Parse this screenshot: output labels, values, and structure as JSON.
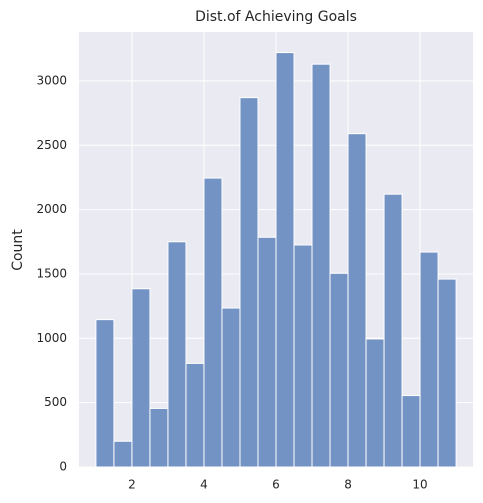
{
  "chart_data": {
    "type": "histogram",
    "title": "Dist.of Achieving Goals",
    "y_label": "Count",
    "bins": [
      1.0,
      1.5,
      2.0,
      2.5,
      3.0,
      3.5,
      4.0,
      4.5,
      5.0,
      5.5,
      6.0,
      6.5,
      7.0,
      7.5,
      8.0,
      8.5,
      9.0,
      9.5,
      10.0,
      10.5,
      11.0
    ],
    "values": [
      1145,
      200,
      1385,
      455,
      1750,
      805,
      2245,
      1235,
      2870,
      1785,
      3220,
      1725,
      3130,
      1505,
      2590,
      995,
      2120,
      555,
      1670,
      1460
    ],
    "color": "#7393c4",
    "xlim": [
      0.53,
      11.47
    ],
    "xticks": [
      2,
      4,
      6,
      8,
      10
    ],
    "ylim": [
      0,
      3380
    ],
    "yticks": [
      0,
      500,
      1000,
      1500,
      2000,
      2500,
      3000
    ],
    "grid": true
  }
}
